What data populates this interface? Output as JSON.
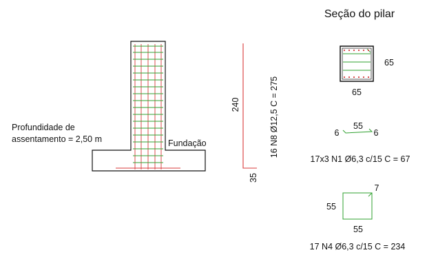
{
  "title": "Seção do pilar",
  "colors": {
    "outline": "#111111",
    "rebar": "#d93a3a",
    "stirrup": "#2fa02f"
  },
  "elevation": {
    "depth_label_line1": "Profundidade de",
    "depth_label_line2": "assentamento = 2,50 m",
    "foundation_label": "Fundação"
  },
  "longitudinal_bar": {
    "length_label": "240",
    "hook_label": "35",
    "spec": "16 N8 Ø12,5 C = 275"
  },
  "section": {
    "width_label": "65",
    "height_label": "65"
  },
  "tie_n1": {
    "left_hook": "6",
    "length": "55",
    "right_hook": "6",
    "spec": "17x3 N1 Ø6,3 c/15 C = 67"
  },
  "stirrup_n4": {
    "hook": "7",
    "height": "55",
    "width": "55",
    "spec": "17 N4 Ø6,3 c/15 C = 234"
  }
}
